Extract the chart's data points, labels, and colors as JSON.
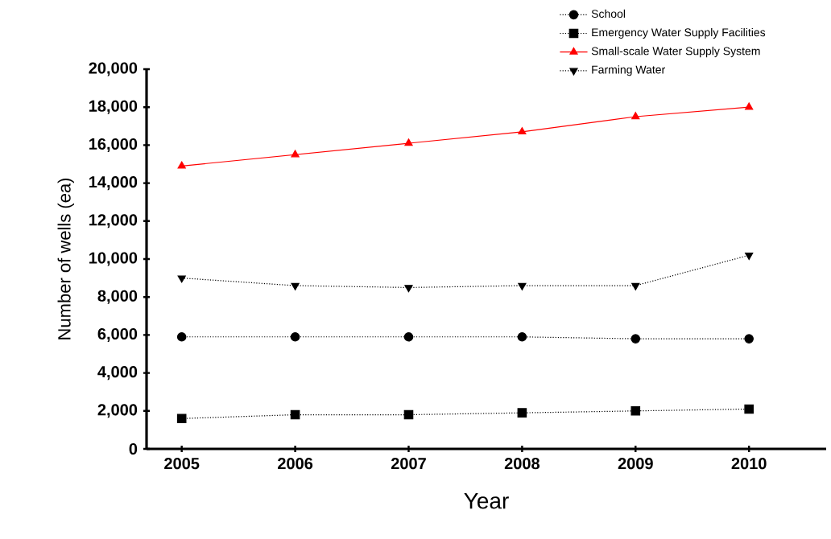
{
  "chart_data": {
    "type": "line",
    "xlabel": "Year",
    "ylabel": "Number of wells (ea)",
    "categories": [
      "2005",
      "2006",
      "2007",
      "2008",
      "2009",
      "2010"
    ],
    "ylim": [
      0,
      20000
    ],
    "yticks": [
      0,
      {
        "value": 2000,
        "label": "2,000"
      },
      {
        "value": 4000,
        "label": "4,000"
      },
      {
        "value": 6000,
        "label": "6,000"
      },
      {
        "value": 8000,
        "label": "8,000"
      },
      {
        "value": 10000,
        "label": "10,000"
      },
      {
        "value": 12000,
        "label": "12,000"
      },
      {
        "value": 14000,
        "label": "14,000"
      },
      {
        "value": 16000,
        "label": "16,000"
      },
      {
        "value": 18000,
        "label": "18,000"
      },
      {
        "value": 20000,
        "label": "20,000"
      }
    ],
    "legend": "top right",
    "series": [
      {
        "name": "School",
        "color": "#000000",
        "marker": "circle",
        "line_style": "dotted",
        "values": [
          5900,
          5900,
          5900,
          5900,
          5800,
          5800
        ]
      },
      {
        "name": "Emergency Water Supply Facilities",
        "color": "#000000",
        "marker": "square",
        "line_style": "dotted",
        "values": [
          1600,
          1800,
          1800,
          1900,
          2000,
          2100
        ]
      },
      {
        "name": "Small-scale Water Supply System",
        "color": "#ff0000",
        "marker": "triangle",
        "line_style": "solid",
        "values": [
          14900,
          15500,
          16100,
          16700,
          17500,
          18000
        ]
      },
      {
        "name": "Farming Water",
        "color": "#000000",
        "marker": "triangle-down",
        "line_style": "dotted",
        "values": [
          9000,
          8600,
          8500,
          8600,
          8600,
          10200
        ]
      }
    ]
  }
}
